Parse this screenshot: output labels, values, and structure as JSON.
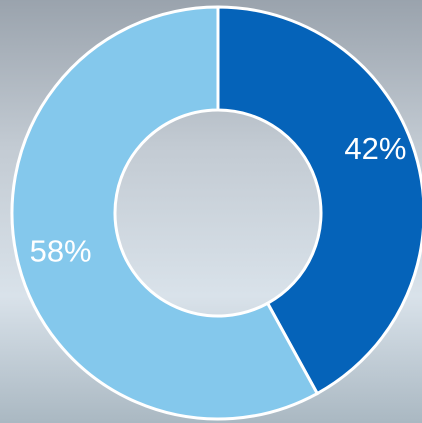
{
  "chart_data": {
    "type": "donut",
    "values": [
      42,
      58
    ],
    "value_labels": [
      "42%",
      "58%"
    ],
    "colors": [
      "#0563b9",
      "#84c8ec"
    ]
  }
}
